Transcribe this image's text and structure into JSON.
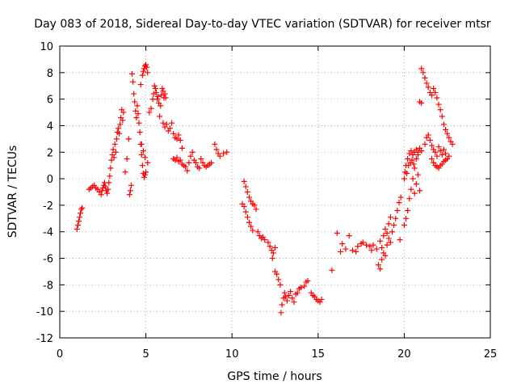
{
  "chart_data": {
    "type": "scatter",
    "title": "Day 083 of 2018, Sidereal Day-to-day VTEC variation (SDTVAR) for receiver mtsr",
    "xlabel": "GPS time / hours",
    "ylabel": "SDTVAR / TECUs",
    "xlim": [
      0,
      25
    ],
    "ylim": [
      -12,
      10
    ],
    "x_ticks": [
      0,
      5,
      10,
      15,
      20,
      25
    ],
    "y_ticks": [
      -12,
      -10,
      -8,
      -6,
      -4,
      -2,
      0,
      2,
      4,
      6,
      8,
      10
    ],
    "grid": true,
    "marker": "+",
    "color": "#ff0000",
    "series": [
      {
        "name": "SDTVAR",
        "points": [
          [
            1.0,
            -3.8
          ],
          [
            1.05,
            -3.5
          ],
          [
            1.1,
            -3.2
          ],
          [
            1.15,
            -2.9
          ],
          [
            1.2,
            -2.6
          ],
          [
            1.25,
            -2.3
          ],
          [
            1.3,
            -2.2
          ],
          [
            1.7,
            -0.8
          ],
          [
            1.8,
            -0.7
          ],
          [
            1.9,
            -0.6
          ],
          [
            2.0,
            -0.5
          ],
          [
            2.1,
            -0.7
          ],
          [
            2.2,
            -0.8
          ],
          [
            2.3,
            -1.0
          ],
          [
            2.4,
            -1.2
          ],
          [
            2.45,
            -0.9
          ],
          [
            2.5,
            -0.7
          ],
          [
            2.55,
            -0.5
          ],
          [
            2.6,
            -0.3
          ],
          [
            2.65,
            -0.6
          ],
          [
            2.7,
            -0.9
          ],
          [
            2.75,
            -1.1
          ],
          [
            2.8,
            -0.8
          ],
          [
            2.85,
            -0.3
          ],
          [
            2.9,
            0.2
          ],
          [
            2.95,
            0.8
          ],
          [
            3.0,
            1.4
          ],
          [
            3.05,
            1.8
          ],
          [
            3.1,
            2.2
          ],
          [
            3.15,
            1.6
          ],
          [
            3.2,
            2.6
          ],
          [
            3.25,
            2.0
          ],
          [
            3.3,
            3.0
          ],
          [
            3.35,
            3.5
          ],
          [
            3.4,
            3.8
          ],
          [
            3.45,
            3.4
          ],
          [
            3.5,
            4.1
          ],
          [
            3.55,
            4.6
          ],
          [
            3.6,
            5.2
          ],
          [
            3.65,
            4.4
          ],
          [
            3.7,
            5.0
          ],
          [
            3.8,
            0.5
          ],
          [
            3.9,
            1.5
          ],
          [
            4.0,
            3.0
          ],
          [
            4.05,
            -1.2
          ],
          [
            4.1,
            -0.9
          ],
          [
            4.15,
            -0.5
          ],
          [
            4.2,
            7.9
          ],
          [
            4.25,
            7.3
          ],
          [
            4.3,
            6.4
          ],
          [
            4.35,
            5.8
          ],
          [
            4.4,
            5.1
          ],
          [
            4.45,
            4.6
          ],
          [
            4.5,
            5.5
          ],
          [
            4.55,
            4.9
          ],
          [
            4.6,
            4.2
          ],
          [
            4.65,
            3.5
          ],
          [
            4.7,
            2.6
          ],
          [
            4.75,
            1.8
          ],
          [
            4.8,
            1.0
          ],
          [
            4.85,
            0.4
          ],
          [
            4.9,
            0.1
          ],
          [
            4.95,
            0.3
          ],
          [
            5.0,
            0.5
          ],
          [
            4.7,
            7.1
          ],
          [
            4.8,
            7.8
          ],
          [
            4.85,
            8.1
          ],
          [
            4.9,
            8.3
          ],
          [
            4.95,
            8.5
          ],
          [
            5.0,
            8.6
          ],
          [
            5.05,
            8.4
          ],
          [
            5.1,
            8.0
          ],
          [
            4.75,
            2.6
          ],
          [
            4.85,
            2.1
          ],
          [
            4.95,
            1.6
          ],
          [
            5.1,
            1.2
          ],
          [
            5.2,
            5.0
          ],
          [
            5.3,
            5.3
          ],
          [
            5.4,
            6.0
          ],
          [
            5.45,
            6.4
          ],
          [
            5.5,
            7.0
          ],
          [
            5.55,
            6.8
          ],
          [
            5.6,
            6.5
          ],
          [
            5.65,
            6.0
          ],
          [
            5.7,
            6.2
          ],
          [
            5.75,
            5.7
          ],
          [
            5.8,
            4.7
          ],
          [
            5.85,
            5.5
          ],
          [
            5.9,
            6.3
          ],
          [
            5.95,
            6.8
          ],
          [
            6.0,
            6.6
          ],
          [
            6.05,
            6.1
          ],
          [
            6.1,
            6.4
          ],
          [
            6.15,
            6.1
          ],
          [
            6.0,
            4.2
          ],
          [
            6.1,
            3.9
          ],
          [
            6.2,
            4.1
          ],
          [
            6.3,
            3.6
          ],
          [
            6.4,
            3.8
          ],
          [
            6.5,
            4.2
          ],
          [
            6.6,
            3.4
          ],
          [
            6.7,
            3.1
          ],
          [
            6.8,
            3.0
          ],
          [
            6.9,
            3.3
          ],
          [
            7.0,
            2.9
          ],
          [
            7.1,
            2.3
          ],
          [
            6.6,
            1.5
          ],
          [
            6.7,
            1.4
          ],
          [
            6.8,
            1.6
          ],
          [
            6.9,
            1.3
          ],
          [
            7.0,
            1.4
          ],
          [
            7.1,
            1.1
          ],
          [
            7.2,
            1.0
          ],
          [
            7.3,
            0.9
          ],
          [
            7.4,
            0.6
          ],
          [
            7.5,
            1.2
          ],
          [
            7.6,
            1.7
          ],
          [
            7.7,
            2.0
          ],
          [
            7.8,
            1.4
          ],
          [
            7.9,
            1.2
          ],
          [
            8.0,
            0.9
          ],
          [
            8.1,
            0.8
          ],
          [
            8.2,
            1.5
          ],
          [
            8.3,
            1.2
          ],
          [
            8.4,
            1.0
          ],
          [
            8.5,
            0.9
          ],
          [
            8.6,
            1.0
          ],
          [
            8.7,
            1.1
          ],
          [
            8.8,
            1.2
          ],
          [
            9.0,
            2.6
          ],
          [
            9.1,
            2.2
          ],
          [
            9.2,
            1.9
          ],
          [
            9.3,
            1.7
          ],
          [
            9.5,
            1.9
          ],
          [
            9.7,
            2.0
          ],
          [
            10.6,
            -1.9
          ],
          [
            10.7,
            -2.1
          ],
          [
            10.8,
            -2.5
          ],
          [
            10.9,
            -2.9
          ],
          [
            11.0,
            -3.3
          ],
          [
            11.1,
            -3.6
          ],
          [
            11.2,
            -3.9
          ],
          [
            10.7,
            -0.2
          ],
          [
            10.8,
            -0.6
          ],
          [
            10.9,
            -1.0
          ],
          [
            11.0,
            -1.4
          ],
          [
            11.1,
            -1.7
          ],
          [
            11.2,
            -1.9
          ],
          [
            11.3,
            -2.0
          ],
          [
            11.4,
            -2.3
          ],
          [
            11.5,
            -4.0
          ],
          [
            11.6,
            -4.3
          ],
          [
            11.7,
            -4.5
          ],
          [
            11.8,
            -4.4
          ],
          [
            11.9,
            -4.6
          ],
          [
            12.1,
            -4.8
          ],
          [
            12.2,
            -5.1
          ],
          [
            12.3,
            -5.4
          ],
          [
            12.35,
            -6.0
          ],
          [
            12.4,
            -5.6
          ],
          [
            12.5,
            -5.2
          ],
          [
            12.5,
            -7.0
          ],
          [
            12.6,
            -7.2
          ],
          [
            12.7,
            -7.6
          ],
          [
            12.8,
            -8.0
          ],
          [
            12.85,
            -10.1
          ],
          [
            12.9,
            -9.5
          ],
          [
            13.0,
            -9.0
          ],
          [
            13.05,
            -8.6
          ],
          [
            13.1,
            -8.9
          ],
          [
            13.2,
            -9.2
          ],
          [
            13.3,
            -8.8
          ],
          [
            13.4,
            -8.5
          ],
          [
            13.5,
            -9.0
          ],
          [
            13.6,
            -9.3
          ],
          [
            13.7,
            -8.7
          ],
          [
            13.8,
            -8.6
          ],
          [
            13.9,
            -8.3
          ],
          [
            14.0,
            -8.2
          ],
          [
            14.2,
            -8.1
          ],
          [
            14.3,
            -7.8
          ],
          [
            14.4,
            -7.7
          ],
          [
            14.6,
            -8.6
          ],
          [
            14.7,
            -8.8
          ],
          [
            14.8,
            -8.9
          ],
          [
            14.9,
            -9.1
          ],
          [
            15.0,
            -9.2
          ],
          [
            15.1,
            -9.3
          ],
          [
            15.2,
            -9.1
          ],
          [
            15.8,
            -6.9
          ],
          [
            16.1,
            -4.1
          ],
          [
            16.3,
            -5.5
          ],
          [
            16.4,
            -4.9
          ],
          [
            16.6,
            -5.3
          ],
          [
            16.8,
            -4.3
          ],
          [
            17.0,
            -5.4
          ],
          [
            17.2,
            -5.5
          ],
          [
            17.3,
            -5.1
          ],
          [
            17.5,
            -4.9
          ],
          [
            17.6,
            -4.8
          ],
          [
            17.8,
            -5.0
          ],
          [
            18.0,
            -5.1
          ],
          [
            18.1,
            -5.4
          ],
          [
            18.2,
            -5.0
          ],
          [
            18.4,
            -5.3
          ],
          [
            18.5,
            -6.5
          ],
          [
            18.6,
            -6.8
          ],
          [
            18.7,
            -6.1
          ],
          [
            18.8,
            -5.6
          ],
          [
            18.9,
            -5.8
          ],
          [
            19.0,
            -5.0
          ],
          [
            19.1,
            -4.5
          ],
          [
            19.2,
            -4.8
          ],
          [
            19.3,
            -4.0
          ],
          [
            19.4,
            -3.5
          ],
          [
            19.5,
            -3.0
          ],
          [
            19.6,
            -2.4
          ],
          [
            19.7,
            -1.8
          ],
          [
            19.8,
            -1.4
          ],
          [
            19.75,
            -4.6
          ],
          [
            18.6,
            -4.7
          ],
          [
            18.7,
            -5.2
          ],
          [
            18.8,
            -4.3
          ],
          [
            18.9,
            -3.8
          ],
          [
            19.0,
            -4.1
          ],
          [
            19.1,
            -3.4
          ],
          [
            19.2,
            -2.9
          ],
          [
            20.0,
            -3.5
          ],
          [
            20.1,
            -3.0
          ],
          [
            20.2,
            -2.4
          ],
          [
            20.3,
            -1.5
          ],
          [
            20.4,
            -0.8
          ],
          [
            20.5,
            0.0
          ],
          [
            20.6,
            0.8
          ],
          [
            20.7,
            1.5
          ],
          [
            20.8,
            2.0
          ],
          [
            20.0,
            0.0
          ],
          [
            20.05,
            0.5
          ],
          [
            20.1,
            1.0
          ],
          [
            20.15,
            0.4
          ],
          [
            20.2,
            1.5
          ],
          [
            20.25,
            1.0
          ],
          [
            20.3,
            1.9
          ],
          [
            20.35,
            1.2
          ],
          [
            20.4,
            2.1
          ],
          [
            20.45,
            1.4
          ],
          [
            20.5,
            1.8
          ],
          [
            20.55,
            1.1
          ],
          [
            20.6,
            2.0
          ],
          [
            20.7,
            2.2
          ],
          [
            20.8,
            1.8
          ],
          [
            20.9,
            2.3
          ],
          [
            21.0,
            2.1
          ],
          [
            20.6,
            -1.1
          ],
          [
            20.7,
            -0.4
          ],
          [
            20.8,
            0.3
          ],
          [
            20.9,
            -0.9
          ],
          [
            20.9,
            5.8
          ],
          [
            21.0,
            5.7
          ],
          [
            21.0,
            8.3
          ],
          [
            21.1,
            8.0
          ],
          [
            21.2,
            7.6
          ],
          [
            21.3,
            7.2
          ],
          [
            21.4,
            6.9
          ],
          [
            21.5,
            6.5
          ],
          [
            21.6,
            6.3
          ],
          [
            21.7,
            6.8
          ],
          [
            21.8,
            6.5
          ],
          [
            21.9,
            6.1
          ],
          [
            22.0,
            5.6
          ],
          [
            22.1,
            5.2
          ],
          [
            22.2,
            4.7
          ],
          [
            22.3,
            4.1
          ],
          [
            22.4,
            3.7
          ],
          [
            22.5,
            3.4
          ],
          [
            22.6,
            3.1
          ],
          [
            22.7,
            2.8
          ],
          [
            22.8,
            2.6
          ],
          [
            21.2,
            2.6
          ],
          [
            21.3,
            3.1
          ],
          [
            21.4,
            3.3
          ],
          [
            21.5,
            2.9
          ],
          [
            21.6,
            2.5
          ],
          [
            21.7,
            2.2
          ],
          [
            21.8,
            2.0
          ],
          [
            21.9,
            1.7
          ],
          [
            22.0,
            2.4
          ],
          [
            22.1,
            2.1
          ],
          [
            22.2,
            1.8
          ],
          [
            22.3,
            2.2
          ],
          [
            22.4,
            1.9
          ],
          [
            21.6,
            1.5
          ],
          [
            21.7,
            1.2
          ],
          [
            21.8,
            1.0
          ],
          [
            21.9,
            0.9
          ],
          [
            22.0,
            0.8
          ],
          [
            22.1,
            1.0
          ],
          [
            22.2,
            1.1
          ],
          [
            22.3,
            1.3
          ],
          [
            22.4,
            1.4
          ],
          [
            22.5,
            1.5
          ],
          [
            22.6,
            1.7
          ]
        ]
      }
    ]
  }
}
